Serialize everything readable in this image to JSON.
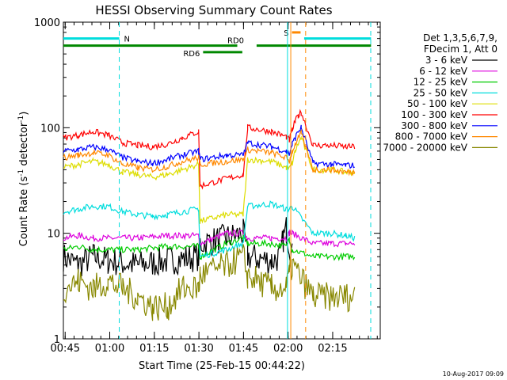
{
  "chart_data": {
    "type": "line",
    "title": "HESSI Observing Summary Count Rates",
    "xlabel": "Start Time (25-Feb-15 00:44:22)",
    "ylabel": "Count Rate (s⁻¹ detector⁻¹)",
    "y_scale": "log",
    "ylim": [
      1,
      1000
    ],
    "x_units": "minutes after 00:44:22",
    "xlim": [
      0,
      106.6
    ],
    "x_ticks": [
      {
        "label": "00:45",
        "value": 0.6
      },
      {
        "label": "01:00",
        "value": 15.6
      },
      {
        "label": "01:15",
        "value": 30.6
      },
      {
        "label": "01:30",
        "value": 45.6
      },
      {
        "label": "01:45",
        "value": 60.6
      },
      {
        "label": "02:00",
        "value": 75.6
      },
      {
        "label": "02:15",
        "value": 90.6
      }
    ],
    "y_ticks": [
      {
        "label": "1",
        "value": 1
      },
      {
        "label": "10",
        "value": 10
      },
      {
        "label": "100",
        "value": 100
      },
      {
        "label": "1000",
        "value": 1000
      }
    ],
    "legend": {
      "position": "right",
      "header": [
        "Det 1,3,5,6,7,9,",
        "FDecim 1, Att 0"
      ]
    },
    "series": [
      {
        "name": "3 - 6 keV",
        "color": "#000000",
        "x": [
          0,
          5,
          10,
          15,
          25,
          35,
          45.5,
          46,
          55,
          60.5,
          62,
          70,
          73,
          74,
          75,
          76,
          77,
          80.2,
          82.5,
          83.8,
          95,
          100,
          101.5,
          103,
          104
        ],
        "y": [
          6,
          5,
          6,
          5.5,
          5,
          5.5,
          6,
          8,
          9,
          10,
          6,
          5.5,
          6,
          9,
          11,
          8,
          6,
          null,
          null,
          null,
          null,
          null,
          null,
          null,
          null
        ]
      },
      {
        "name": "6 - 12 keV",
        "color": "#dd00dd",
        "x": [
          0,
          5,
          10,
          15,
          25,
          35,
          45.5,
          46,
          55,
          60.5,
          62,
          70,
          75,
          76,
          77,
          84,
          90,
          95,
          98,
          101.5,
          103,
          104
        ],
        "y": [
          9,
          9.5,
          9,
          9,
          9,
          9.5,
          9.5,
          8,
          10,
          10,
          9,
          9,
          9,
          10,
          10,
          8,
          8,
          8,
          8,
          null,
          null,
          null
        ]
      },
      {
        "name": "12 - 25 keV",
        "color": "#00cc00",
        "x": [
          0,
          5,
          10,
          15,
          25,
          35,
          45.5,
          46,
          55,
          60.5,
          62,
          70,
          75,
          76,
          77,
          84,
          90,
          95,
          98,
          101.5,
          103,
          104
        ],
        "y": [
          7,
          7.5,
          7,
          7,
          7,
          7.5,
          7.5,
          6,
          8,
          9,
          8,
          8,
          7.5,
          9,
          7,
          6,
          6,
          6,
          6,
          null,
          null,
          null
        ]
      },
      {
        "name": "25 - 50 keV",
        "color": "#00dddd",
        "x": [
          0,
          5,
          10,
          15,
          20,
          25,
          30,
          35,
          40,
          45.5,
          46,
          55,
          60.5,
          62,
          70,
          75,
          76,
          77,
          84,
          90,
          95,
          98,
          101.5,
          103,
          104
        ],
        "y": [
          16,
          17,
          18,
          18,
          16,
          15,
          14.5,
          15,
          16,
          17,
          6,
          7,
          8,
          18,
          19,
          17,
          17,
          18,
          10,
          10,
          9.5,
          9,
          null,
          null,
          null
        ]
      },
      {
        "name": "50 - 100 keV",
        "color": "#dddd00",
        "x": [
          0,
          5,
          10,
          15,
          20,
          25,
          30,
          35,
          40,
          45.5,
          46,
          55,
          60.5,
          62,
          70,
          75,
          76,
          77,
          78,
          79,
          80,
          84,
          90,
          95,
          98,
          101.5,
          103,
          104
        ],
        "y": [
          42,
          45,
          48,
          45,
          38,
          36,
          34,
          36,
          40,
          45,
          13,
          15,
          15,
          50,
          48,
          42,
          41,
          46,
          60,
          70,
          80,
          40,
          40,
          38,
          38,
          null,
          null,
          null
        ]
      },
      {
        "name": "100 - 300 keV",
        "color": "#ff0000",
        "x": [
          0,
          5,
          10,
          15,
          20,
          25,
          30,
          35,
          40,
          45.5,
          46,
          55,
          60.5,
          62,
          70,
          75,
          76,
          77,
          78,
          79,
          80,
          84,
          90,
          95,
          98,
          101.5,
          103,
          104
        ],
        "y": [
          80,
          85,
          92,
          85,
          72,
          68,
          66,
          70,
          80,
          92,
          28,
          33,
          36,
          100,
          92,
          82,
          76,
          95,
          115,
          130,
          140,
          68,
          68,
          66,
          66,
          null,
          null,
          null
        ]
      },
      {
        "name": "300 - 800 keV",
        "color": "#0000ff",
        "x": [
          0,
          5,
          10,
          15,
          20,
          25,
          30,
          35,
          40,
          45.5,
          46,
          55,
          60.5,
          62,
          70,
          75,
          76,
          77,
          78,
          79,
          80,
          84,
          90,
          95,
          98,
          101.5,
          103,
          104
        ],
        "y": [
          60,
          62,
          66,
          62,
          52,
          48,
          46,
          50,
          55,
          60,
          50,
          55,
          55,
          72,
          66,
          60,
          56,
          70,
          80,
          92,
          100,
          46,
          45,
          44,
          44,
          null,
          null,
          null
        ]
      },
      {
        "name": "800 - 7000 keV",
        "color": "#ff8800",
        "x": [
          0,
          5,
          10,
          15,
          20,
          25,
          30,
          35,
          40,
          45.5,
          46,
          55,
          60.5,
          62,
          70,
          75,
          76,
          77,
          78,
          79,
          80,
          84,
          90,
          95,
          98,
          101.5,
          103,
          104
        ],
        "y": [
          52,
          55,
          58,
          55,
          45,
          42,
          40,
          43,
          48,
          52,
          45,
          48,
          50,
          62,
          58,
          52,
          48,
          60,
          70,
          80,
          88,
          40,
          40,
          38,
          38,
          null,
          null,
          null
        ]
      },
      {
        "name": "7000 - 20000 keV",
        "color": "#888800",
        "x": [
          0,
          5,
          10,
          15,
          20,
          25,
          30,
          35,
          40,
          45.5,
          46,
          55,
          60.5,
          62,
          70,
          75,
          76,
          77,
          84,
          90,
          95,
          98,
          101.5,
          103,
          104
        ],
        "y": [
          3,
          3.5,
          3,
          3.5,
          3,
          2.5,
          2,
          2,
          3,
          3,
          4,
          5,
          6,
          4,
          3,
          3,
          4,
          5,
          2.5,
          2.5,
          2.5,
          2.5,
          null,
          null,
          null
        ]
      }
    ],
    "annotations": {
      "bars": [
        {
          "label": "N",
          "color": "#00dddd",
          "level": 700,
          "segments": [
            [
              0,
              18.8
            ],
            [
              81,
              103.5
            ]
          ]
        },
        {
          "label": "S",
          "color": "#ff8800",
          "level": 800,
          "segments": [
            [
              76.9,
              79.8
            ]
          ]
        },
        {
          "label": "RD0",
          "color": "#008800",
          "level": 600,
          "segments": [
            [
              0,
              58.5
            ],
            [
              65,
              103.5
            ]
          ]
        },
        {
          "label": "RD6",
          "color": "#008800",
          "level": 520,
          "segments": [
            [
              47,
              60.2
            ]
          ]
        }
      ],
      "vlines": [
        {
          "x": 18.8,
          "color": "#00dddd",
          "style": "dashed"
        },
        {
          "x": 75.4,
          "color": "#00dddd",
          "style": "solid"
        },
        {
          "x": 76.5,
          "color": "#ff8800",
          "style": "solid"
        },
        {
          "x": 81.5,
          "color": "#ff8800",
          "style": "dashed"
        },
        {
          "x": 103.4,
          "color": "#00dddd",
          "style": "dashed"
        }
      ]
    },
    "footer": "10-Aug-2017 09:09"
  }
}
